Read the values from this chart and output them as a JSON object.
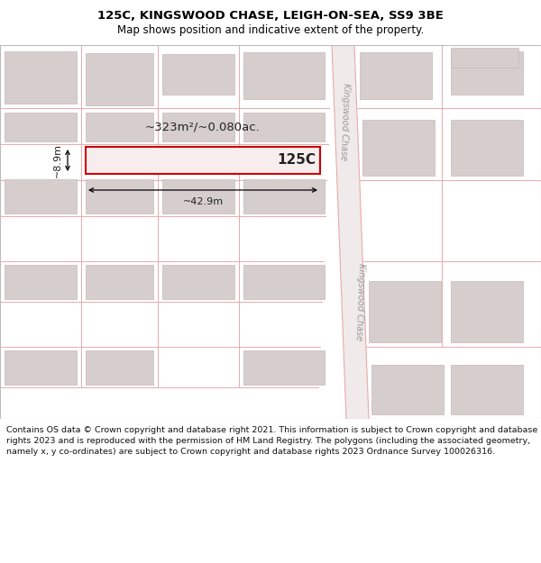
{
  "title_line1": "125C, KINGSWOOD CHASE, LEIGH-ON-SEA, SS9 3BE",
  "title_line2": "Map shows position and indicative extent of the property.",
  "map_bg": "#f2ecec",
  "building_fill": "#d6cecd",
  "building_edge": "#c8b8b8",
  "highlight_fill": "#f7eded",
  "highlight_edge": "#cc0000",
  "grid_line_color": "#e8aaaa",
  "label_125c": "125C",
  "area_label": "~323m²/~0.080ac.",
  "width_label": "~42.9m",
  "height_label": "~8.9m",
  "road_name_top": "Kingswood Chase",
  "road_name_bottom": "Kingswood Chase",
  "road_fill": "#f2ecec",
  "road_line": "#e8aaaa",
  "footer_text": "Contains OS data © Crown copyright and database right 2021. This information is subject to Crown copyright and database rights 2023 and is reproduced with the permission of HM Land Registry. The polygons (including the associated geometry, namely x, y co-ordinates) are subject to Crown copyright and database rights 2023 Ordnance Survey 100026316.",
  "title_fontsize": 9.5,
  "subtitle_fontsize": 8.5,
  "footer_fontsize": 6.8
}
